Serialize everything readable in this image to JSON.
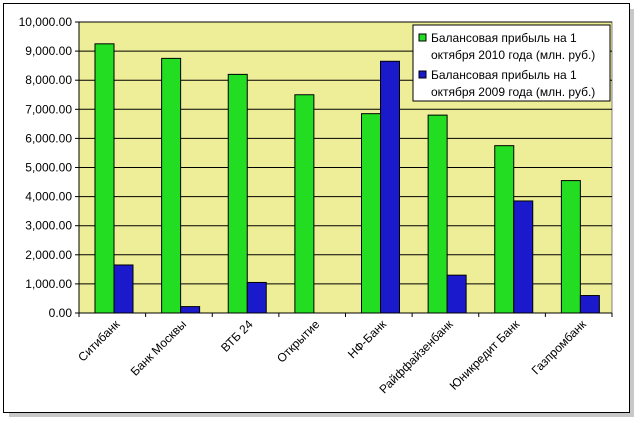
{
  "chart_data": {
    "type": "bar",
    "title": "",
    "xlabel": "",
    "ylabel": "",
    "ylim": [
      0,
      10000
    ],
    "yticks": [
      "0.00",
      "1,000.00",
      "2,000.00",
      "3,000.00",
      "4,000.00",
      "5,000.00",
      "6,000.00",
      "7,000.00",
      "8,000.00",
      "9,000.00",
      "10,000.00"
    ],
    "grid": true,
    "legend_position": "top-right",
    "plot_background": "#eeee99",
    "categories": [
      "Ситибанк",
      "Банк Москвы",
      "ВТБ 24",
      "Открытие",
      "НФ-Банк",
      "Райффайзенбанк",
      "Юникредит Банк",
      "Газпромбанк"
    ],
    "series": [
      {
        "name": "Балансовая прибыль на 1 октября 2010 года (млн. руб.)",
        "name_lines": [
          "Балансовая прибыль на 1",
          "октября 2010 года (млн. руб.)"
        ],
        "color": "#22dd22",
        "values": [
          9250,
          8750,
          8200,
          7500,
          6850,
          6800,
          5750,
          4550
        ]
      },
      {
        "name": "Балансовая прибыль на 1 октября 2009 года (млн. руб.)",
        "name_lines": [
          "Балансовая прибыль на 1",
          "октября 2009 года (млн. руб.)"
        ],
        "color": "#1a1acc",
        "values": [
          1650,
          220,
          1050,
          0,
          8650,
          1300,
          3850,
          600
        ]
      }
    ]
  }
}
